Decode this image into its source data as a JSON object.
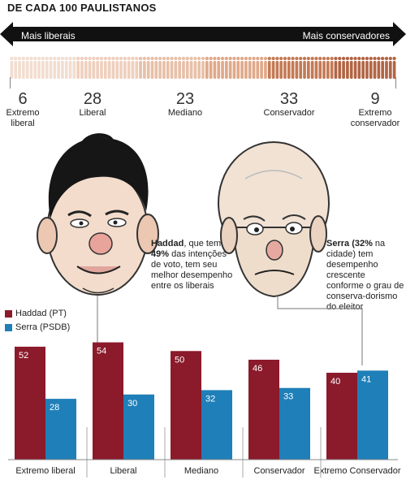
{
  "header": "DE CADA 100 PAULISTANOS",
  "arrow": {
    "left_label": "Mais liberais",
    "right_label": "Mais conservadores"
  },
  "segments": [
    {
      "value": "6",
      "label_line1": "Extremo",
      "label_line2": "liberal"
    },
    {
      "value": "28",
      "label_line1": "Liberal",
      "label_line2": ""
    },
    {
      "value": "23",
      "label_line1": "Mediano",
      "label_line2": ""
    },
    {
      "value": "33",
      "label_line1": "Conservador",
      "label_line2": ""
    },
    {
      "value": "9",
      "label_line1": "Extremo",
      "label_line2": "conservador"
    }
  ],
  "people_colors": [
    "#f2ddd0",
    "#efcfbd",
    "#e7c0a8",
    "#e0a98a",
    "#c47a55",
    "#b26545"
  ],
  "captions": {
    "haddad_name": "Haddad",
    "haddad_text1": ", que tem",
    "haddad_pct": "49%",
    "haddad_text2": " das intenções de voto, tem seu melhor desempenho entre os liberais",
    "serra_name": "Serra (32%",
    "serra_text1": " na cidade) tem desempenho crescente conforme o grau de conserva-dorismo do eleitor"
  },
  "legend": [
    {
      "name": "Haddad (PT)",
      "color": "#8b1a2b"
    },
    {
      "name": "Serra (PSDB)",
      "color": "#1f7fb8"
    }
  ],
  "chart_data": {
    "type": "bar",
    "categories": [
      "Extremo liberal",
      "Liberal",
      "Mediano",
      "Conservador",
      "Extremo Conservador"
    ],
    "series": [
      {
        "name": "Haddad (PT)",
        "values": [
          52,
          54,
          50,
          46,
          40
        ],
        "color": "#8b1a2b"
      },
      {
        "name": "Serra (PSDB)",
        "values": [
          28,
          30,
          32,
          33,
          41
        ],
        "color": "#1f7fb8"
      }
    ],
    "title": "",
    "xlabel": "",
    "ylabel": "",
    "ylim": [
      0,
      60
    ],
    "grid": false,
    "legend_placement": "top-left"
  }
}
